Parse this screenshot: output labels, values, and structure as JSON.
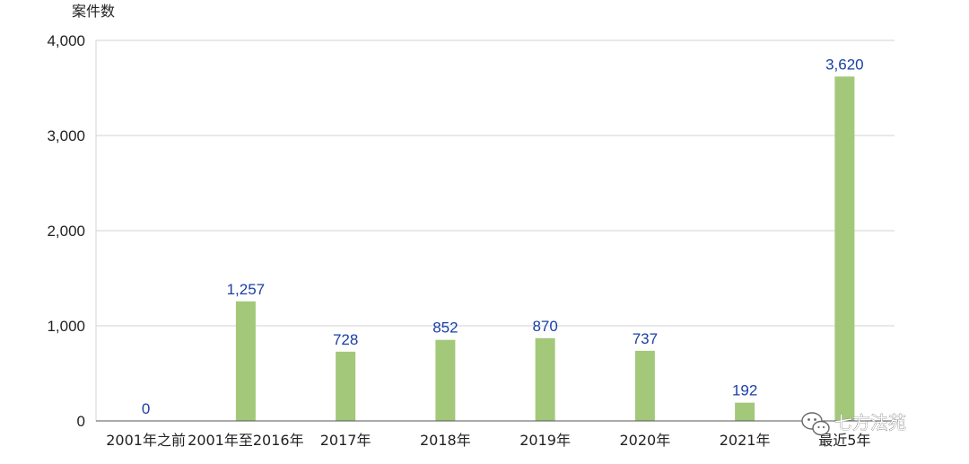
{
  "chart_data": {
    "type": "bar",
    "title": "",
    "ylabel": "案件数",
    "xlabel": "",
    "categories": [
      "2001年之前",
      "2001年至2016年",
      "2017年",
      "2018年",
      "2019年",
      "2020年",
      "2021年",
      "最近5年"
    ],
    "values": [
      0,
      1257,
      728,
      852,
      870,
      737,
      192,
      3620
    ],
    "value_labels": [
      "0",
      "1,257",
      "728",
      "852",
      "870",
      "737",
      "192",
      "3,620"
    ],
    "yticks": [
      0,
      1000,
      2000,
      3000,
      4000
    ],
    "ytick_labels": [
      "0",
      "1,000",
      "2,000",
      "3,000",
      "4,000"
    ],
    "ylim": [
      0,
      4000
    ],
    "grid": true,
    "legend": "none"
  },
  "colors": {
    "bar": "#a3c87a",
    "data_label": "#1a3fa6",
    "grid": "#d3d3d3",
    "axis": "#555555"
  },
  "watermark": {
    "text": "七方法苑",
    "icon": "wechat-icon"
  }
}
